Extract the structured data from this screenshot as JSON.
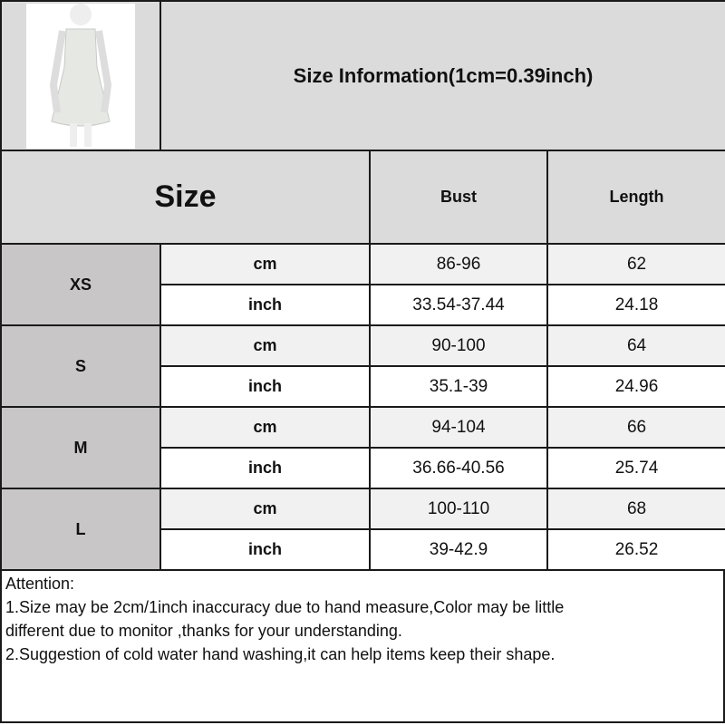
{
  "header": {
    "title": "Size Information(1cm=0.39inch)",
    "product_image": "white satin slip mini dress on mannequin"
  },
  "table": {
    "size_label": "Size",
    "columns": [
      "Bust",
      "Length"
    ],
    "rows": [
      {
        "size": "XS",
        "cm": {
          "unit": "cm",
          "bust": "86-96",
          "length": "62"
        },
        "inch": {
          "unit": "inch",
          "bust": "33.54-37.44",
          "length": "24.18"
        }
      },
      {
        "size": "S",
        "cm": {
          "unit": "cm",
          "bust": "90-100",
          "length": "64"
        },
        "inch": {
          "unit": "inch",
          "bust": "35.1-39",
          "length": "24.96"
        }
      },
      {
        "size": "M",
        "cm": {
          "unit": "cm",
          "bust": "94-104",
          "length": "66"
        },
        "inch": {
          "unit": "inch",
          "bust": "36.66-40.56",
          "length": "25.74"
        }
      },
      {
        "size": "L",
        "cm": {
          "unit": "cm",
          "bust": "100-110",
          "length": "68"
        },
        "inch": {
          "unit": "inch",
          "bust": "39-42.9",
          "length": "26.52"
        }
      }
    ]
  },
  "notes": [
    "Attention:",
    "1.Size may be 2cm/1inch inaccuracy due to hand measure,Color may be little",
    "different due to monitor ,thanks for your understanding.",
    "2.Suggestion of cold water hand washing,it can help items keep their shape."
  ],
  "colors": {
    "header_bg": "#dcdbdb",
    "size_bg": "#c8c6c6",
    "cm_row_bg": "#f1f1f1",
    "border": "#1a1a1a"
  }
}
